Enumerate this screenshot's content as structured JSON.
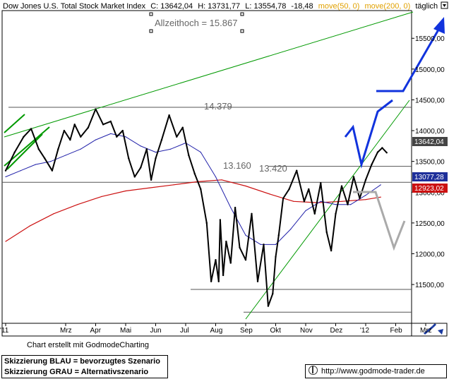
{
  "header": {
    "title": "Dow Jones U.S. Total Stock Market Index",
    "c_label": "C: 13642,04",
    "h_label": "H: 13731,77",
    "l_label": "L: 13554,78",
    "chg_label": "-18,48",
    "ma50_label": "move(50, 0)",
    "ma200_label": "move(200, 0)",
    "period_label": "täglich",
    "ma50_color": "#e0a000",
    "ma200_color": "#e0a000"
  },
  "annotations": {
    "ath_label": "Allzeithoch = 15.867",
    "level_14379": "14.379",
    "level_13420": "13.420",
    "level_13160": "13.160"
  },
  "price_badges": {
    "last": "13642,04",
    "ma50": "13077,28",
    "ma200": "12923,02"
  },
  "footer": {
    "credit": "Chart erstellt mit GodmodeCharting",
    "legend_blue": "Skizzierung BLAU = bevorzugtes Szenario",
    "legend_grey": "Skizzierung GRAU = Alternativszenario",
    "url": "http://www.godmode-trader.de"
  },
  "colors": {
    "price": "#000000",
    "ma50": "#2222aa",
    "ma200": "#cc1111",
    "trend": "#009900",
    "scenario_blue": "#1133dd",
    "scenario_grey": "#aaaaaa",
    "hline": "#555555"
  },
  "chart_data": {
    "type": "line",
    "title": "Dow Jones U.S. Total Stock Market Index",
    "period": "täglich",
    "ylim": [
      10870,
      15950
    ],
    "y_ticks": [
      11500,
      12000,
      12500,
      13000,
      13500,
      14000,
      14500,
      15000,
      15500
    ],
    "y_tick_labels": [
      "11500,00",
      "12000,00",
      "12500,00",
      "13000,00",
      "13500,00",
      "14000,00",
      "14500,00",
      "15000,00",
      "15500,00"
    ],
    "x_tick_labels": [
      "'11",
      "Mrz",
      "Apr",
      "Mai",
      "Jun",
      "Jul",
      "Aug",
      "Sep",
      "Okt",
      "Nov",
      "Dez",
      "'12",
      "Feb",
      "Mrz"
    ],
    "x_tick_months": [
      0,
      2,
      3,
      4,
      5,
      6,
      7,
      8,
      9,
      10,
      11,
      12,
      13,
      14
    ],
    "horizontal_levels": [
      14379,
      13420,
      13160,
      11420,
      11050
    ],
    "series": [
      {
        "name": "Dow Jones U.S. Total Stock Market Index",
        "x_months": [
          0.0,
          0.3,
          0.6,
          0.85,
          1.1,
          1.3,
          1.55,
          1.75,
          1.95,
          2.15,
          2.3,
          2.5,
          2.75,
          3.0,
          3.25,
          3.5,
          3.7,
          3.9,
          4.1,
          4.3,
          4.5,
          4.7,
          4.85,
          5.0,
          5.2,
          5.45,
          5.7,
          5.9,
          6.1,
          6.3,
          6.5,
          6.7,
          6.85,
          7.0,
          7.1,
          7.15,
          7.25,
          7.35,
          7.5,
          7.65,
          7.8,
          8.0,
          8.2,
          8.4,
          8.6,
          8.75,
          8.9,
          9.0,
          9.1,
          9.25,
          9.45,
          9.7,
          9.95,
          10.1,
          10.3,
          10.5,
          10.7,
          10.85,
          11.0,
          11.2,
          11.4,
          11.6,
          11.8,
          12.0,
          12.2,
          12.4,
          12.55,
          12.7
        ],
        "values": [
          13350,
          13650,
          13900,
          14030,
          13700,
          13550,
          13350,
          13700,
          14000,
          13850,
          14100,
          13900,
          14050,
          14350,
          14100,
          14150,
          13900,
          14000,
          13550,
          13250,
          13400,
          13700,
          13200,
          13550,
          13850,
          14250,
          13900,
          14050,
          13600,
          13300,
          13050,
          12500,
          11550,
          11900,
          11550,
          12550,
          11650,
          12200,
          11850,
          12750,
          12100,
          11900,
          12650,
          11550,
          12150,
          11150,
          11350,
          11950,
          12300,
          12900,
          13050,
          13350,
          12850,
          13050,
          12650,
          13150,
          12350,
          12050,
          12650,
          13100,
          12800,
          13250,
          12900,
          13200,
          13450,
          13650,
          13720,
          13642
        ]
      },
      {
        "name": "move(50, 0)",
        "x_months": [
          0.0,
          0.5,
          1.0,
          1.5,
          2.0,
          2.5,
          3.0,
          3.5,
          4.0,
          4.5,
          5.0,
          5.5,
          6.0,
          6.5,
          7.0,
          7.5,
          8.0,
          8.5,
          9.0,
          9.5,
          10.0,
          10.5,
          11.0,
          11.5,
          12.0,
          12.5
        ],
        "values": [
          13250,
          13350,
          13450,
          13500,
          13600,
          13700,
          13850,
          13950,
          13900,
          13750,
          13650,
          13700,
          13800,
          13650,
          13250,
          12750,
          12300,
          12150,
          12150,
          12400,
          12700,
          12850,
          12800,
          12800,
          12950,
          13120
        ]
      },
      {
        "name": "move(200, 0)",
        "x_months": [
          0.0,
          0.8,
          1.6,
          2.4,
          3.2,
          4.0,
          4.8,
          5.6,
          6.4,
          7.2,
          8.0,
          8.8,
          9.6,
          10.4,
          11.2,
          12.0,
          12.5
        ],
        "values": [
          12200,
          12450,
          12650,
          12800,
          12930,
          13020,
          13070,
          13120,
          13170,
          13200,
          13100,
          12970,
          12850,
          12830,
          12850,
          12880,
          12920
        ]
      }
    ],
    "last_value": 13642.04,
    "ma50_last": 13077.28,
    "ma200_last": 12923.02
  }
}
